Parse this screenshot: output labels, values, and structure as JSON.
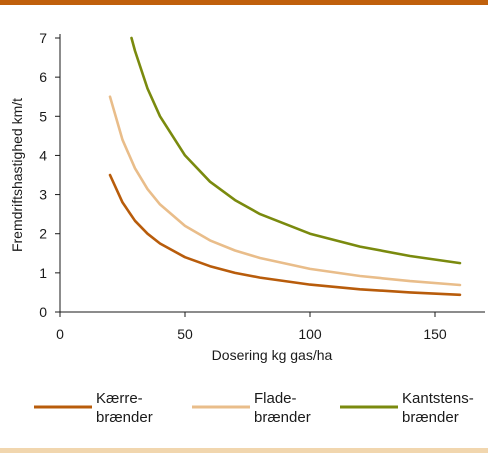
{
  "chart_data": {
    "type": "line",
    "xlabel": "Dosering kg gas/ha",
    "ylabel": "Fremdriftshastighed km/t",
    "xlim": [
      0,
      170
    ],
    "ylim": [
      0,
      7
    ],
    "xticks": [
      0,
      50,
      100,
      150
    ],
    "yticks": [
      0,
      1,
      2,
      3,
      4,
      5,
      6,
      7
    ],
    "grid": false,
    "legend_position": "bottom",
    "series": [
      {
        "name": "Kærre-brænder",
        "label_lines": [
          "Kærre-",
          "brænder"
        ],
        "color": "#b85c0b",
        "x": [
          20,
          25,
          30,
          35,
          40,
          50,
          60,
          70,
          80,
          100,
          120,
          140,
          160
        ],
        "y": [
          3.5,
          2.8,
          2.33,
          2.0,
          1.75,
          1.4,
          1.17,
          1.0,
          0.88,
          0.7,
          0.58,
          0.5,
          0.44
        ]
      },
      {
        "name": "Flade-brænder",
        "label_lines": [
          "Flade-",
          "brænder"
        ],
        "color": "#e9bd8a",
        "x": [
          20,
          25,
          30,
          35,
          40,
          50,
          60,
          70,
          80,
          100,
          120,
          140,
          160
        ],
        "y": [
          5.5,
          4.4,
          3.67,
          3.14,
          2.75,
          2.2,
          1.83,
          1.57,
          1.38,
          1.1,
          0.92,
          0.79,
          0.69
        ]
      },
      {
        "name": "Kantstens-brænder",
        "label_lines": [
          "Kantstens-",
          "brænder"
        ],
        "color": "#7a8a0e",
        "x": [
          28.6,
          30,
          35,
          40,
          50,
          60,
          70,
          80,
          100,
          120,
          140,
          160
        ],
        "y": [
          7.0,
          6.67,
          5.71,
          5.0,
          4.0,
          3.33,
          2.86,
          2.5,
          2.0,
          1.67,
          1.43,
          1.25
        ]
      }
    ]
  },
  "colors": {
    "rule_top": "#c0600c",
    "rule_bottom": "#f1d6ae",
    "axis": "#1a1a1a"
  }
}
